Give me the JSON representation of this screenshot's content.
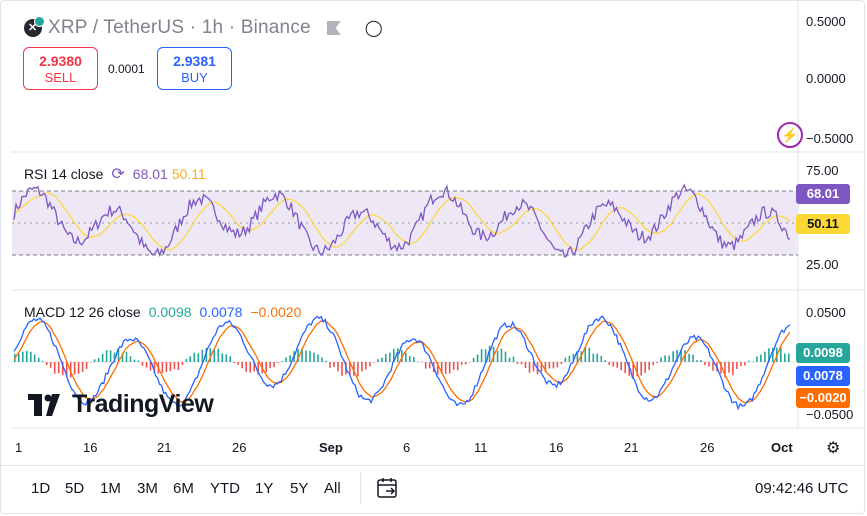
{
  "header": {
    "title": "XRP / TetherUS · 1h · Binance"
  },
  "trade": {
    "sell_price": "2.9380",
    "sell_label": "SELL",
    "spread": "0.0001",
    "buy_price": "2.9381",
    "buy_label": "BUY"
  },
  "price_axis": [
    "0.5000",
    "0.0000",
    "−0.5000"
  ],
  "rsi": {
    "title": "RSI 14 close",
    "value1": "68.01",
    "value2": "50.11",
    "axis": [
      "75.00",
      "25.00"
    ],
    "tag1": "68.01",
    "tag2": "50.11",
    "colors": {
      "rsi": "#7e57c2",
      "ma": "#fdd835",
      "band": "#ede7f6"
    }
  },
  "macd": {
    "title": "MACD 12 26 close",
    "value_hist": "0.0098",
    "value_macd": "0.0078",
    "value_signal": "−0.0020",
    "axis": [
      "0.0500",
      "−0.0500"
    ],
    "tag_hist": "0.0098",
    "tag_macd": "0.0078",
    "tag_signal": "−0.0020",
    "colors": {
      "hist": "#26a69a",
      "macd": "#2962ff",
      "signal": "#ff6d00",
      "neg": "#ef5350"
    }
  },
  "logo": {
    "text": "TradingView"
  },
  "time_axis": [
    "1",
    "16",
    "21",
    "26",
    "Sep",
    "6",
    "11",
    "16",
    "21",
    "26",
    "Oct"
  ],
  "ranges": [
    "1D",
    "5D",
    "1M",
    "3M",
    "6M",
    "YTD",
    "1Y",
    "5Y",
    "All"
  ],
  "clock": "09:42:46 UTC"
}
